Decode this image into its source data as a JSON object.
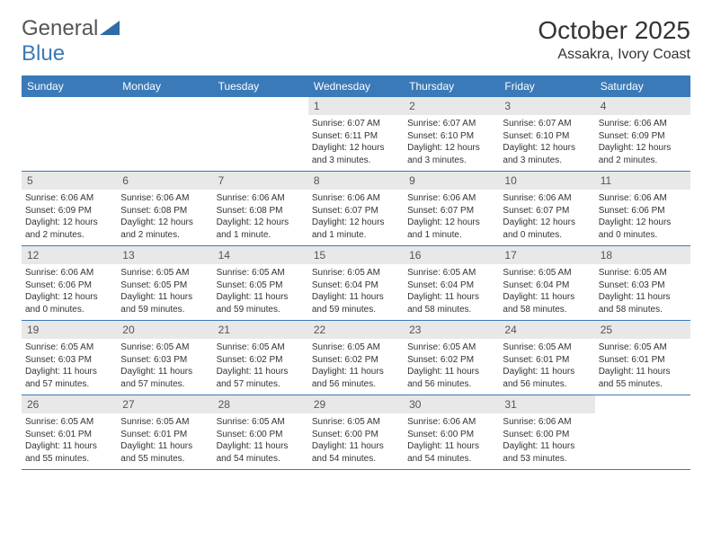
{
  "colors": {
    "header_bg": "#3a7ab8",
    "header_text": "#ffffff",
    "daynum_bg": "#e8e8e8",
    "border": "#3a7ab8",
    "body_text": "#333333",
    "page_bg": "#ffffff"
  },
  "logo": {
    "part1": "General",
    "part2": "Blue"
  },
  "title": "October 2025",
  "location": "Assakra, Ivory Coast",
  "day_headers": [
    "Sunday",
    "Monday",
    "Tuesday",
    "Wednesday",
    "Thursday",
    "Friday",
    "Saturday"
  ],
  "layout": {
    "weeks": 5,
    "first_day_col": 3,
    "last_day": 31,
    "fontsize_header": 12,
    "fontsize_daynum": 12,
    "fontsize_body": 10
  },
  "days": [
    {
      "n": "1",
      "sunrise": "6:07 AM",
      "sunset": "6:11 PM",
      "daylight": "12 hours and 3 minutes."
    },
    {
      "n": "2",
      "sunrise": "6:07 AM",
      "sunset": "6:10 PM",
      "daylight": "12 hours and 3 minutes."
    },
    {
      "n": "3",
      "sunrise": "6:07 AM",
      "sunset": "6:10 PM",
      "daylight": "12 hours and 3 minutes."
    },
    {
      "n": "4",
      "sunrise": "6:06 AM",
      "sunset": "6:09 PM",
      "daylight": "12 hours and 2 minutes."
    },
    {
      "n": "5",
      "sunrise": "6:06 AM",
      "sunset": "6:09 PM",
      "daylight": "12 hours and 2 minutes."
    },
    {
      "n": "6",
      "sunrise": "6:06 AM",
      "sunset": "6:08 PM",
      "daylight": "12 hours and 2 minutes."
    },
    {
      "n": "7",
      "sunrise": "6:06 AM",
      "sunset": "6:08 PM",
      "daylight": "12 hours and 1 minute."
    },
    {
      "n": "8",
      "sunrise": "6:06 AM",
      "sunset": "6:07 PM",
      "daylight": "12 hours and 1 minute."
    },
    {
      "n": "9",
      "sunrise": "6:06 AM",
      "sunset": "6:07 PM",
      "daylight": "12 hours and 1 minute."
    },
    {
      "n": "10",
      "sunrise": "6:06 AM",
      "sunset": "6:07 PM",
      "daylight": "12 hours and 0 minutes."
    },
    {
      "n": "11",
      "sunrise": "6:06 AM",
      "sunset": "6:06 PM",
      "daylight": "12 hours and 0 minutes."
    },
    {
      "n": "12",
      "sunrise": "6:06 AM",
      "sunset": "6:06 PM",
      "daylight": "12 hours and 0 minutes."
    },
    {
      "n": "13",
      "sunrise": "6:05 AM",
      "sunset": "6:05 PM",
      "daylight": "11 hours and 59 minutes."
    },
    {
      "n": "14",
      "sunrise": "6:05 AM",
      "sunset": "6:05 PM",
      "daylight": "11 hours and 59 minutes."
    },
    {
      "n": "15",
      "sunrise": "6:05 AM",
      "sunset": "6:04 PM",
      "daylight": "11 hours and 59 minutes."
    },
    {
      "n": "16",
      "sunrise": "6:05 AM",
      "sunset": "6:04 PM",
      "daylight": "11 hours and 58 minutes."
    },
    {
      "n": "17",
      "sunrise": "6:05 AM",
      "sunset": "6:04 PM",
      "daylight": "11 hours and 58 minutes."
    },
    {
      "n": "18",
      "sunrise": "6:05 AM",
      "sunset": "6:03 PM",
      "daylight": "11 hours and 58 minutes."
    },
    {
      "n": "19",
      "sunrise": "6:05 AM",
      "sunset": "6:03 PM",
      "daylight": "11 hours and 57 minutes."
    },
    {
      "n": "20",
      "sunrise": "6:05 AM",
      "sunset": "6:03 PM",
      "daylight": "11 hours and 57 minutes."
    },
    {
      "n": "21",
      "sunrise": "6:05 AM",
      "sunset": "6:02 PM",
      "daylight": "11 hours and 57 minutes."
    },
    {
      "n": "22",
      "sunrise": "6:05 AM",
      "sunset": "6:02 PM",
      "daylight": "11 hours and 56 minutes."
    },
    {
      "n": "23",
      "sunrise": "6:05 AM",
      "sunset": "6:02 PM",
      "daylight": "11 hours and 56 minutes."
    },
    {
      "n": "24",
      "sunrise": "6:05 AM",
      "sunset": "6:01 PM",
      "daylight": "11 hours and 56 minutes."
    },
    {
      "n": "25",
      "sunrise": "6:05 AM",
      "sunset": "6:01 PM",
      "daylight": "11 hours and 55 minutes."
    },
    {
      "n": "26",
      "sunrise": "6:05 AM",
      "sunset": "6:01 PM",
      "daylight": "11 hours and 55 minutes."
    },
    {
      "n": "27",
      "sunrise": "6:05 AM",
      "sunset": "6:01 PM",
      "daylight": "11 hours and 55 minutes."
    },
    {
      "n": "28",
      "sunrise": "6:05 AM",
      "sunset": "6:00 PM",
      "daylight": "11 hours and 54 minutes."
    },
    {
      "n": "29",
      "sunrise": "6:05 AM",
      "sunset": "6:00 PM",
      "daylight": "11 hours and 54 minutes."
    },
    {
      "n": "30",
      "sunrise": "6:06 AM",
      "sunset": "6:00 PM",
      "daylight": "11 hours and 54 minutes."
    },
    {
      "n": "31",
      "sunrise": "6:06 AM",
      "sunset": "6:00 PM",
      "daylight": "11 hours and 53 minutes."
    }
  ],
  "labels": {
    "sunrise": "Sunrise:",
    "sunset": "Sunset:",
    "daylight": "Daylight:"
  }
}
